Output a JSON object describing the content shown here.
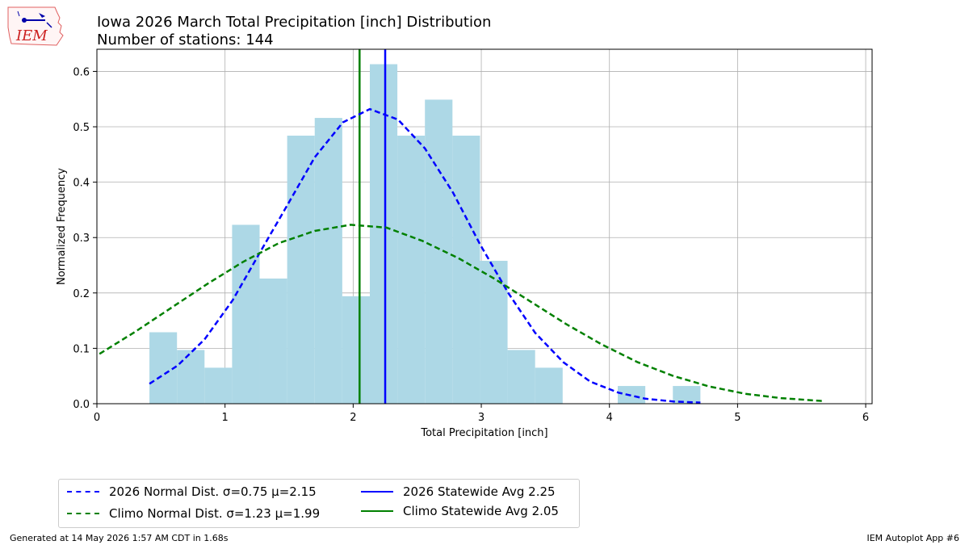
{
  "header": {
    "title": "Iowa 2026 March Total Precipitation [inch] Distribution",
    "subtitle": "Number of stations: 144"
  },
  "logo": {
    "text": "IEM"
  },
  "footer": {
    "left": "Generated at 14 May 2026 1:57 AM CDT in 1.68s",
    "right": "IEM Autoplot App #6"
  },
  "legend": {
    "items": [
      {
        "key": "norm2026",
        "label": "2026 Normal Dist. σ=0.75 μ=2.15",
        "style": "dashed",
        "color": "#0000ff"
      },
      {
        "key": "normClimo",
        "label": "Climo Normal Dist. σ=1.23 μ=1.99",
        "style": "dashed",
        "color": "#008000"
      },
      {
        "key": "avg2026",
        "label": "2026 Statewide Avg 2.25",
        "style": "solid",
        "color": "#0000ff"
      },
      {
        "key": "avgClimo",
        "label": "Climo Statewide Avg 2.05",
        "style": "solid",
        "color": "#008000"
      }
    ]
  },
  "chart_data": {
    "type": "bar",
    "title": "Iowa 2026 March Total Precipitation [inch] Distribution",
    "subtitle": "Number of stations: 144",
    "xlabel": "Total Precipitation [inch]",
    "ylabel": "Normalized Frequency",
    "xlim": [
      0,
      6.05
    ],
    "ylim": [
      0,
      0.64
    ],
    "xticks": [
      0,
      1,
      2,
      3,
      4,
      5,
      6
    ],
    "yticks": [
      0.0,
      0.1,
      0.2,
      0.3,
      0.4,
      0.5,
      0.6
    ],
    "ytick_labels": [
      "0.0",
      "0.1",
      "0.2",
      "0.3",
      "0.4",
      "0.5",
      "0.6"
    ],
    "grid": true,
    "bar_color": "#add8e6",
    "histogram": {
      "bin_edges": [
        0.41,
        0.625,
        0.84,
        1.055,
        1.27,
        1.485,
        1.7,
        1.915,
        2.13,
        2.345,
        2.56,
        2.775,
        2.99,
        3.205,
        3.42,
        3.635,
        3.85,
        4.065,
        4.28,
        4.495,
        4.71
      ],
      "values": [
        0.129,
        0.097,
        0.065,
        0.323,
        0.226,
        0.484,
        0.516,
        0.194,
        0.613,
        0.484,
        0.549,
        0.484,
        0.258,
        0.097,
        0.065,
        0,
        0,
        0.032,
        0,
        0.032
      ]
    },
    "series": [
      {
        "name": "2026 Normal Dist. σ=0.75 μ=2.15",
        "style": "dashed",
        "color": "#0000ff",
        "x": [
          0.41,
          0.63,
          0.84,
          1.06,
          1.27,
          1.49,
          1.7,
          1.92,
          2.13,
          2.35,
          2.56,
          2.78,
          2.99,
          3.21,
          3.42,
          3.64,
          3.85,
          4.07,
          4.28,
          4.5,
          4.71
        ],
        "y": [
          0.036,
          0.069,
          0.116,
          0.187,
          0.272,
          0.36,
          0.445,
          0.508,
          0.532,
          0.513,
          0.461,
          0.381,
          0.288,
          0.2,
          0.128,
          0.075,
          0.04,
          0.02,
          0.009,
          0.004,
          0.002
        ]
      },
      {
        "name": "Climo Normal Dist. σ=1.23 μ=1.99",
        "style": "dashed",
        "color": "#008000",
        "x": [
          0.02,
          0.3,
          0.58,
          0.86,
          1.14,
          1.42,
          1.7,
          1.98,
          2.26,
          2.54,
          2.82,
          3.1,
          3.38,
          3.66,
          3.94,
          4.22,
          4.5,
          4.78,
          5.06,
          5.34,
          5.66
        ],
        "y": [
          0.09,
          0.13,
          0.173,
          0.216,
          0.256,
          0.29,
          0.312,
          0.323,
          0.318,
          0.294,
          0.263,
          0.226,
          0.185,
          0.144,
          0.107,
          0.075,
          0.05,
          0.031,
          0.018,
          0.01,
          0.005
        ]
      }
    ],
    "vlines": [
      {
        "name": "2026 Statewide Avg 2.25",
        "x": 2.25,
        "color": "#0000ff"
      },
      {
        "name": "Climo Statewide Avg 2.05",
        "x": 2.05,
        "color": "#008000"
      }
    ],
    "legend_position": "bottom-left, below axes"
  }
}
